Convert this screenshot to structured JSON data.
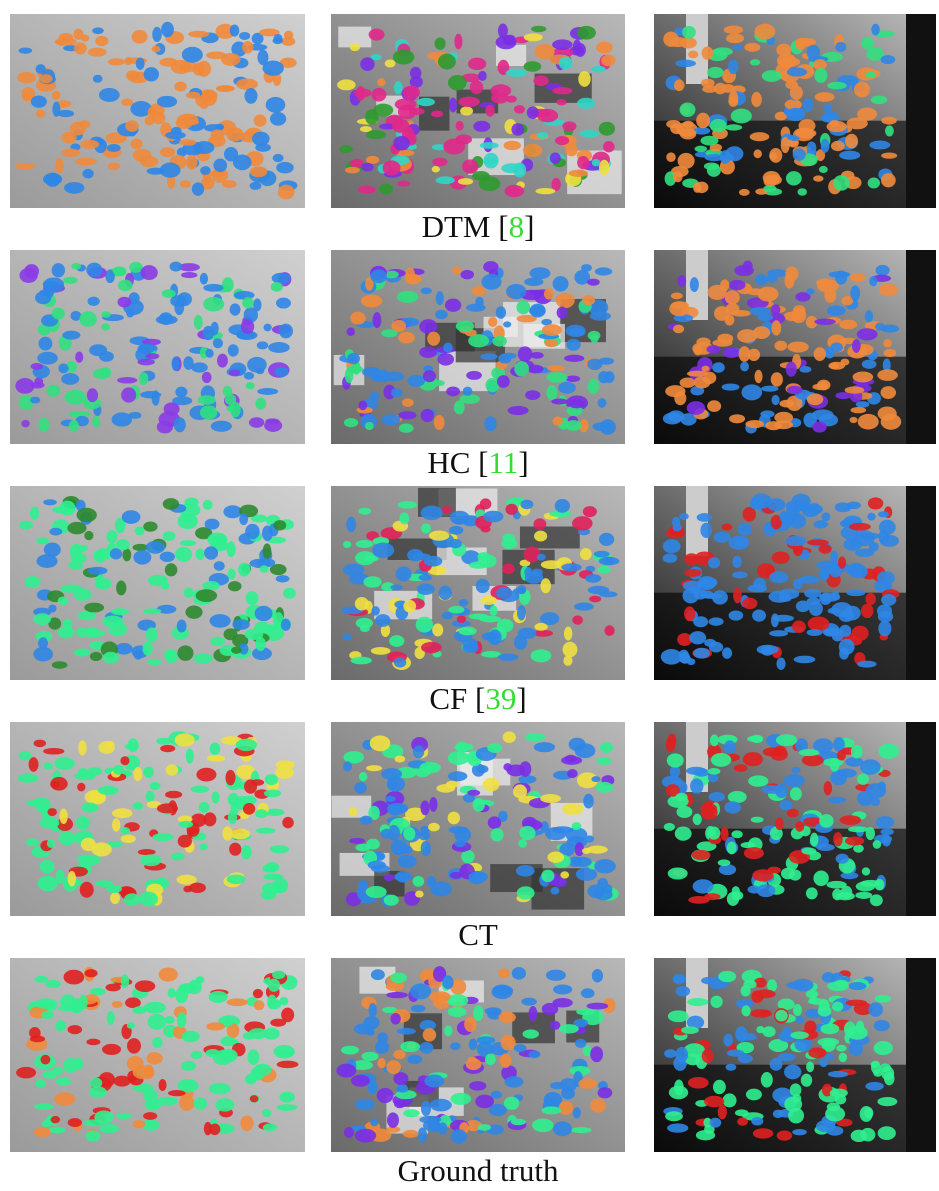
{
  "rows": [
    {
      "caption": {
        "before": "DTM [",
        "citation": "8",
        "after": "]"
      }
    },
    {
      "caption": {
        "before": "HC [",
        "citation": "11",
        "after": "]"
      }
    },
    {
      "caption": {
        "before": "CF [",
        "citation": "39",
        "after": "]"
      }
    },
    {
      "caption": {
        "before": "CT"
      }
    },
    {
      "caption": {
        "before": "Ground truth"
      }
    }
  ]
}
